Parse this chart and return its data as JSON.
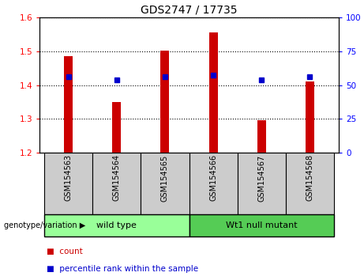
{
  "title": "GDS2747 / 17735",
  "samples": [
    "GSM154563",
    "GSM154564",
    "GSM154565",
    "GSM154566",
    "GSM154567",
    "GSM154568"
  ],
  "bar_tops": [
    1.486,
    1.35,
    1.502,
    1.555,
    1.295,
    1.41
  ],
  "bar_bottom": 1.2,
  "percentile_values": [
    1.425,
    1.415,
    1.425,
    1.43,
    1.415,
    1.425
  ],
  "ylim_left": [
    1.2,
    1.6
  ],
  "ylim_right": [
    0,
    100
  ],
  "yticks_left": [
    1.2,
    1.3,
    1.4,
    1.5,
    1.6
  ],
  "yticks_right": [
    0,
    25,
    50,
    75,
    100
  ],
  "bar_color": "#cc0000",
  "percentile_color": "#0000cc",
  "groups": [
    {
      "label": "wild type",
      "samples": [
        0,
        1,
        2
      ],
      "color": "#99ff99"
    },
    {
      "label": "Wt1 null mutant",
      "samples": [
        3,
        4,
        5
      ],
      "color": "#55cc55"
    }
  ],
  "group_label_prefix": "genotype/variation ▶",
  "legend_count_label": "count",
  "legend_percentile_label": "percentile rank within the sample",
  "xlabel_area_color": "#cccccc",
  "tick_label_fontsize": 8,
  "title_fontsize": 10,
  "bar_width": 0.18
}
